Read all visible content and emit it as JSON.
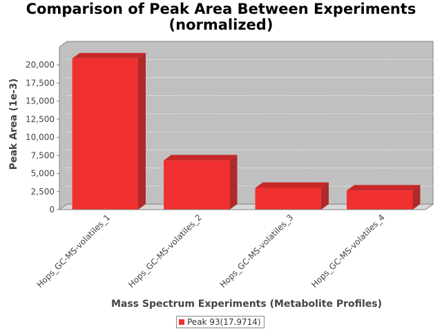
{
  "chart_data": {
    "type": "bar",
    "title_line1": "Comparison of Peak Area Between Experiments",
    "title_line2": "(normalized)",
    "xlabel": "Mass Spectrum Experiments (Metabolite Profiles)",
    "ylabel": "Peak Area (1e-3)",
    "categories": [
      "Hops_GC-MS-volatiles_1",
      "Hops_GC-MS-volatiles_2",
      "Hops_GC-MS-volatiles_3",
      "Hops_GC-MS-volatiles_4"
    ],
    "series": [
      {
        "name": "Peak 93(17.9714)",
        "values": [
          20900,
          6800,
          3000,
          2650
        ],
        "color": "#f03030"
      }
    ],
    "y_ticks": [
      "0",
      "2,500",
      "5,000",
      "7,500",
      "10,000",
      "12,500",
      "15,000",
      "17,500",
      "20,000"
    ],
    "ylim": [
      0,
      22500
    ],
    "grid": true,
    "legend_position": "bottom"
  }
}
